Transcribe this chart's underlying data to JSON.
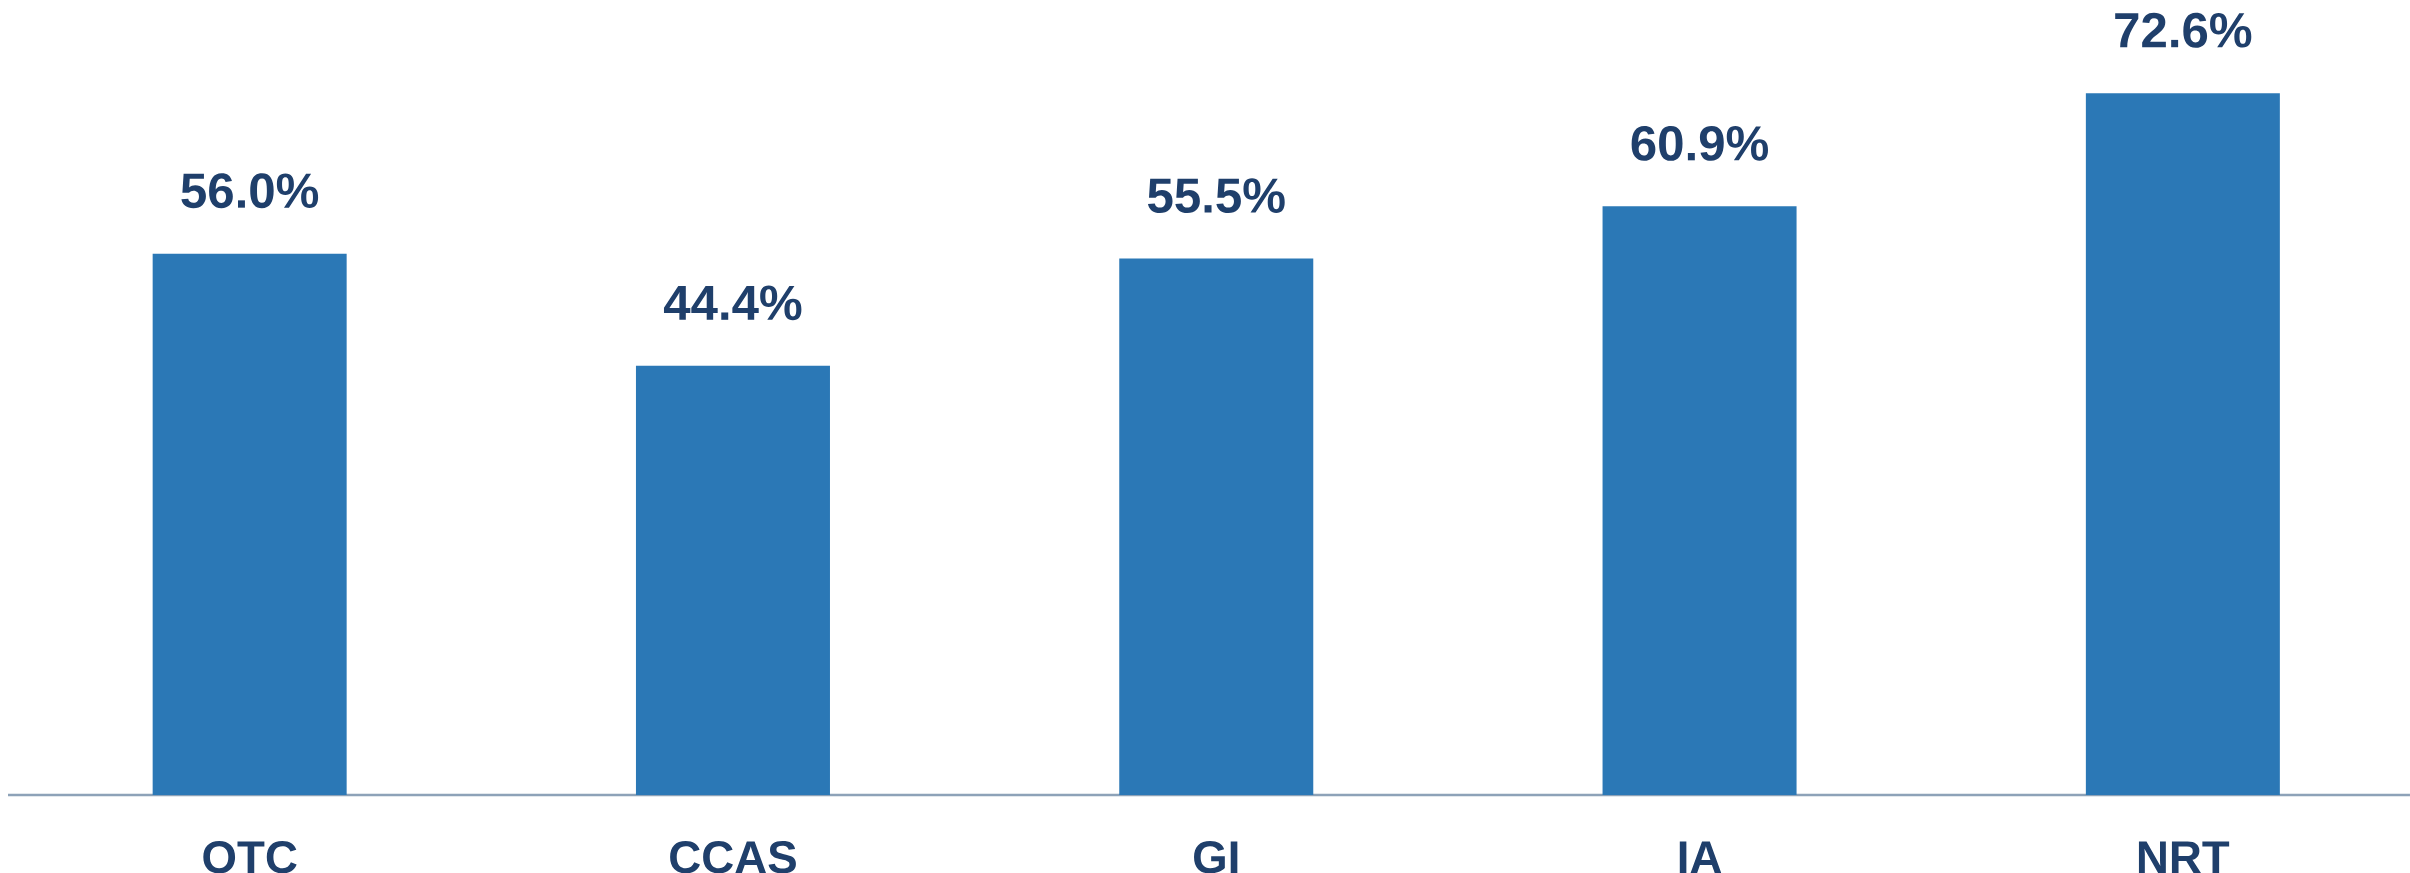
{
  "chart_data": {
    "type": "bar",
    "categories": [
      "OTC",
      "CCAS",
      "GI",
      "IA",
      "NRT"
    ],
    "values": [
      56.0,
      44.4,
      55.5,
      60.9,
      72.6
    ],
    "value_labels": [
      "56.0%",
      "44.4%",
      "55.5%",
      "60.9%",
      "72.6%"
    ],
    "color": "#2b78b6",
    "tick_labels": "x"
  }
}
